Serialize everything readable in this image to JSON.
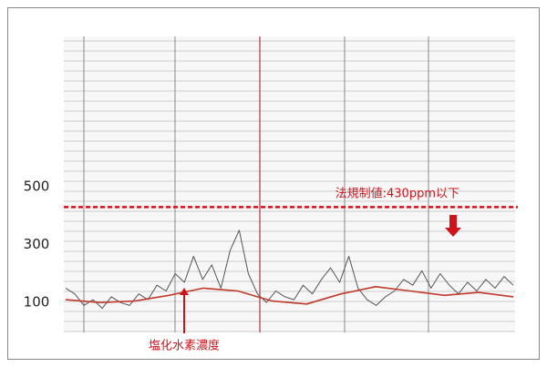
{
  "chart_data": {
    "type": "line",
    "ylim": [
      0,
      1020
    ],
    "yticks": [
      100,
      300,
      500
    ],
    "series": [
      {
        "color": "#555555",
        "values": [
          150,
          130,
          90,
          110,
          80,
          120,
          100,
          90,
          130,
          110,
          160,
          140,
          200,
          170,
          260,
          180,
          230,
          150,
          280,
          350,
          200,
          130,
          100,
          140,
          120,
          110,
          160,
          130,
          180,
          220,
          170,
          260,
          150,
          110,
          90,
          120,
          140,
          180,
          160,
          210,
          150,
          200,
          160,
          130,
          170,
          140,
          180,
          150,
          190,
          160
        ]
      },
      {
        "color": "#c0392b",
        "values": [
          110,
          100,
          105,
          125,
          150,
          140,
          105,
          95,
          130,
          155,
          140,
          125,
          135,
          120
        ]
      }
    ],
    "threshold": {
      "value": 430,
      "label": "法規制値:430ppm以下",
      "color": "#d0121b"
    },
    "annotation": "塩化水素濃度"
  }
}
